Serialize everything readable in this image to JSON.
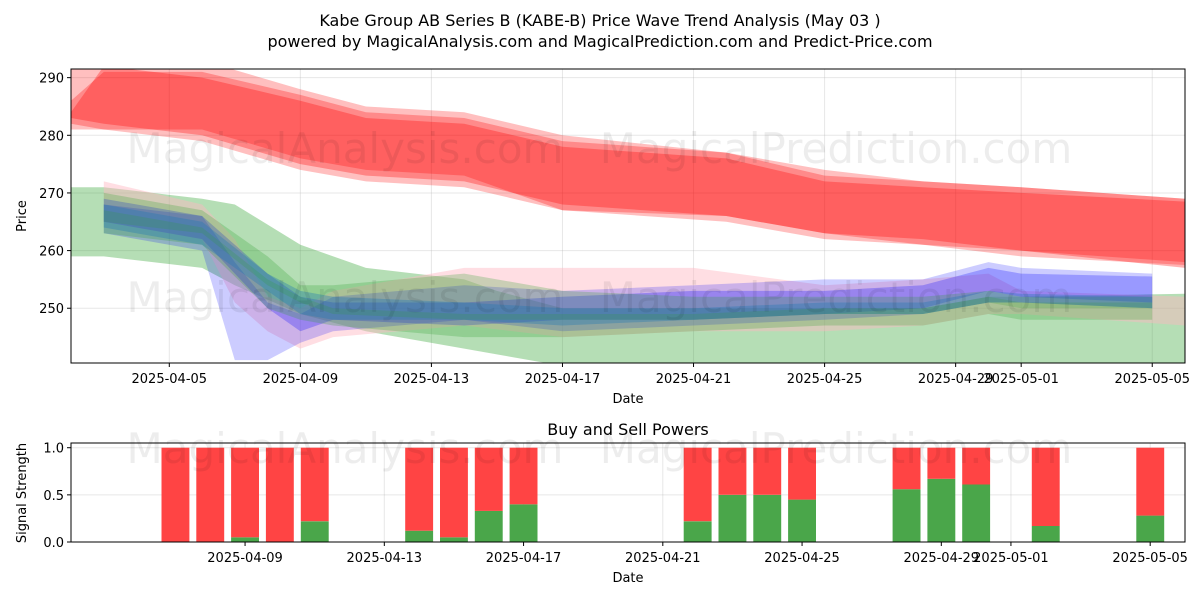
{
  "title_line1": "Kabe Group AB Series B (KABE-B) Price Wave Trend Analysis (May 03 )",
  "title_line2": "powered by MagicalAnalysis.com and MagicalPrediction.com and Predict-Price.com",
  "watermarks": [
    "MagicalAnalysis.com",
    "MagicalPrediction.com"
  ],
  "chart_data": [
    {
      "type": "area",
      "title": "",
      "xlabel": "Date",
      "ylabel": "Price",
      "xlim": [
        "2025-04-02",
        "2025-05-06"
      ],
      "ylim": [
        240.5,
        291.5
      ],
      "x_ticks": [
        "2025-04-05",
        "2025-04-09",
        "2025-04-13",
        "2025-04-17",
        "2025-04-21",
        "2025-04-25",
        "2025-04-29",
        "2025-05-01",
        "2025-05-05"
      ],
      "y_ticks": [
        250,
        260,
        270,
        280,
        290
      ],
      "grid": true,
      "colors": {
        "red": "#ff0000",
        "green": "#2ca02c",
        "blue": "#0000ff",
        "teal": "#1f77b4",
        "pink": "#ffb6c1"
      },
      "bands": [
        {
          "color": "#ff0000",
          "opacity": 0.25,
          "x": [
            "2025-04-02",
            "2025-04-03",
            "2025-04-06",
            "2025-04-09",
            "2025-04-11",
            "2025-04-14",
            "2025-04-17",
            "2025-04-22",
            "2025-04-25",
            "2025-04-28",
            "2025-05-01",
            "2025-05-06"
          ],
          "upper": [
            292,
            293,
            293,
            288,
            285,
            284,
            280,
            277,
            274,
            272,
            271,
            269
          ],
          "lower": [
            281,
            281,
            279,
            274,
            272,
            271,
            267,
            265,
            262,
            261,
            259,
            257.5
          ]
        },
        {
          "color": "#ff0000",
          "opacity": 0.3,
          "x": [
            "2025-04-02",
            "2025-04-03",
            "2025-04-06",
            "2025-04-09",
            "2025-04-11",
            "2025-04-14",
            "2025-04-17",
            "2025-04-22",
            "2025-04-25",
            "2025-04-28",
            "2025-05-01",
            "2025-05-06"
          ],
          "upper": [
            284,
            292,
            290,
            286,
            283,
            282,
            278,
            276,
            272,
            271,
            270,
            268.5
          ],
          "lower": [
            283,
            282,
            280,
            275,
            273,
            272,
            268,
            266,
            263,
            262,
            260,
            257
          ]
        },
        {
          "color": "#ff0000",
          "opacity": 0.28,
          "x": [
            "2025-04-02",
            "2025-04-03",
            "2025-04-06",
            "2025-04-09",
            "2025-04-11",
            "2025-04-14",
            "2025-04-17",
            "2025-04-22",
            "2025-04-25",
            "2025-04-28",
            "2025-05-01",
            "2025-05-06"
          ],
          "upper": [
            286,
            291,
            291,
            287,
            284,
            283,
            279,
            277,
            273,
            272,
            271,
            269
          ],
          "lower": [
            282,
            281,
            281,
            276,
            274,
            273,
            267,
            266,
            263,
            261,
            260,
            258
          ]
        },
        {
          "color": "#2ca02c",
          "opacity": 0.35,
          "x": [
            "2025-04-02",
            "2025-04-03",
            "2025-04-06",
            "2025-04-07",
            "2025-04-09",
            "2025-04-11",
            "2025-04-14",
            "2025-04-15",
            "2025-04-17",
            "2025-04-22",
            "2025-04-25",
            "2025-04-28",
            "2025-04-30",
            "2025-05-01",
            "2025-05-06"
          ],
          "upper": [
            271,
            271,
            269,
            268,
            261,
            257,
            255,
            253,
            250,
            250,
            250,
            250,
            252,
            252,
            252.5
          ],
          "lower": [
            259,
            259,
            257,
            254,
            249,
            246,
            243,
            242,
            240,
            240,
            240,
            240,
            240,
            240,
            240
          ]
        },
        {
          "color": "#ffb6c1",
          "opacity": 0.45,
          "x": [
            "2025-04-03",
            "2025-04-06",
            "2025-04-07",
            "2025-04-08",
            "2025-04-09",
            "2025-04-10",
            "2025-04-14",
            "2025-04-17",
            "2025-04-21",
            "2025-04-25",
            "2025-04-28",
            "2025-04-30",
            "2025-05-01",
            "2025-05-06"
          ],
          "upper": [
            272,
            268,
            262,
            252,
            250,
            253,
            257,
            257,
            257,
            254,
            255,
            256,
            253,
            252
          ],
          "lower": [
            265,
            262,
            251,
            246,
            243,
            245,
            247,
            245,
            246,
            246,
            247,
            249,
            249,
            247
          ]
        },
        {
          "color": "#0000ff",
          "opacity": 0.2,
          "x": [
            "2025-04-03",
            "2025-04-06",
            "2025-04-07",
            "2025-04-08",
            "2025-04-09",
            "2025-04-10",
            "2025-04-14",
            "2025-04-17",
            "2025-04-21",
            "2025-04-25",
            "2025-04-28",
            "2025-04-30",
            "2025-05-01",
            "2025-05-05"
          ],
          "upper": [
            268,
            266,
            258,
            251,
            249,
            252,
            254,
            253,
            254,
            255,
            255,
            258,
            257,
            256
          ],
          "lower": [
            263,
            260,
            241,
            241,
            244,
            246,
            248,
            246,
            247,
            248,
            249,
            251,
            251,
            250
          ]
        },
        {
          "color": "#0000ff",
          "opacity": 0.25,
          "x": [
            "2025-04-03",
            "2025-04-06",
            "2025-04-08",
            "2025-04-09",
            "2025-04-10",
            "2025-04-14",
            "2025-04-17",
            "2025-04-21",
            "2025-04-25",
            "2025-04-28",
            "2025-04-30",
            "2025-05-01",
            "2025-05-05"
          ],
          "upper": [
            269,
            266,
            256,
            252,
            251,
            251,
            252,
            253,
            253,
            254,
            257,
            256,
            255.5
          ],
          "lower": [
            265,
            262,
            250,
            246,
            248,
            247,
            248,
            248,
            249,
            250,
            253,
            252,
            251
          ]
        },
        {
          "color": "#2ca02c",
          "opacity": 0.25,
          "x": [
            "2025-04-03",
            "2025-04-06",
            "2025-04-08",
            "2025-04-09",
            "2025-04-10",
            "2025-04-14",
            "2025-04-17",
            "2025-04-21",
            "2025-04-25",
            "2025-04-28",
            "2025-04-30",
            "2025-05-01",
            "2025-05-05"
          ],
          "upper": [
            270,
            267,
            259,
            254,
            254,
            256,
            253,
            252,
            252,
            252,
            253,
            252,
            252
          ],
          "lower": [
            263,
            261,
            250,
            248,
            247,
            245,
            245,
            246,
            247,
            247,
            249,
            248,
            248
          ]
        },
        {
          "color": "#1f77b4",
          "opacity": 0.35,
          "x": [
            "2025-04-03",
            "2025-04-06",
            "2025-04-08",
            "2025-04-09",
            "2025-04-10",
            "2025-04-14",
            "2025-04-17",
            "2025-04-21",
            "2025-04-25",
            "2025-04-28",
            "2025-04-30",
            "2025-05-01",
            "2025-05-05"
          ],
          "upper": [
            268,
            265,
            256,
            253,
            252,
            251,
            250,
            250,
            251,
            251,
            253,
            252.5,
            252
          ],
          "lower": [
            264,
            261,
            253,
            249,
            248,
            248,
            247,
            248,
            249,
            249,
            251,
            251,
            250
          ]
        },
        {
          "color": "#2ca02c",
          "opacity": 0.2,
          "x": [
            "2025-04-03",
            "2025-04-06",
            "2025-04-08",
            "2025-04-09",
            "2025-04-10",
            "2025-04-14",
            "2025-04-17",
            "2025-04-21",
            "2025-04-25",
            "2025-04-28",
            "2025-04-30",
            "2025-05-01",
            "2025-05-05"
          ],
          "upper": [
            267,
            264,
            255,
            252,
            250,
            249,
            249,
            249,
            250,
            250,
            252,
            251,
            251
          ],
          "lower": [
            265,
            263,
            254,
            251,
            249,
            248,
            248,
            248,
            249,
            249,
            251,
            250,
            250
          ]
        }
      ]
    },
    {
      "type": "bar",
      "title": "Buy and Sell Powers",
      "xlabel": "Date",
      "ylabel": "Signal Strength",
      "xlim": [
        "2025-04-04",
        "2025-05-06"
      ],
      "ylim": [
        0,
        1.05
      ],
      "x_ticks": [
        "2025-04-09",
        "2025-04-13",
        "2025-04-17",
        "2025-04-21",
        "2025-04-25",
        "2025-04-29",
        "2025-05-01",
        "2025-05-05"
      ],
      "y_ticks": [
        0.0,
        0.5,
        1.0
      ],
      "grid": true,
      "colors": {
        "buy": "#4aa64a",
        "sell": "#ff4444"
      },
      "categories": [
        "2025-04-07",
        "2025-04-08",
        "2025-04-09",
        "2025-04-10",
        "2025-04-11",
        "2025-04-14",
        "2025-04-15",
        "2025-04-16",
        "2025-04-17",
        "2025-04-22",
        "2025-04-23",
        "2025-04-24",
        "2025-04-25",
        "2025-04-28",
        "2025-04-29",
        "2025-04-30",
        "2025-05-02",
        "2025-05-05"
      ],
      "series": [
        {
          "name": "Buy",
          "values": [
            0.0,
            0.0,
            0.05,
            0.0,
            0.22,
            0.12,
            0.05,
            0.33,
            0.4,
            0.22,
            0.5,
            0.5,
            0.45,
            0.56,
            0.67,
            0.61,
            0.17,
            0.28
          ]
        },
        {
          "name": "Sell",
          "values": [
            1.0,
            1.0,
            0.95,
            1.0,
            0.78,
            0.88,
            0.95,
            0.67,
            0.6,
            0.78,
            0.5,
            0.5,
            0.55,
            0.44,
            0.33,
            0.39,
            0.83,
            0.72
          ]
        }
      ]
    }
  ]
}
